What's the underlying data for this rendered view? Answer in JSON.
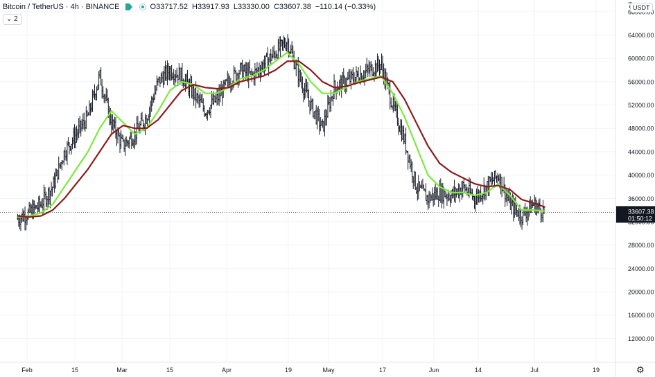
{
  "header": {
    "symbol": "Bitcoin / TetherUS · 4h · BINANCE",
    "open": "O33717.52",
    "high": "H33917.93",
    "low": "L33330.00",
    "close": "C33607.38",
    "change": "−110.14 (−0.33%)",
    "chip_label": "⌄ 2"
  },
  "corner": {
    "top_label": "7",
    "currency_button": "USDT"
  },
  "price_tag": {
    "value": "33607.38",
    "countdown": "01:50:12"
  },
  "icons": {
    "settings": "gear-icon",
    "flag": "flag-icon",
    "visibility": "eye-dot-icon"
  },
  "colors": {
    "bars": "#131722",
    "ma_fast": "#7cea3c",
    "ma_slow": "#8b1a1a",
    "tag_bg": "#131722",
    "grid": "#f0f3fa"
  },
  "chart_data": {
    "type": "line",
    "title": "Bitcoin / TetherUS · 4h · BINANCE",
    "ylim": [
      8000,
      70000
    ],
    "yticks": [
      "12000.00",
      "16000.00",
      "20000.00",
      "24000.00",
      "28000.00",
      "32000.00",
      "36000.00",
      "40000.00",
      "44000.00",
      "48000.00",
      "52000.00",
      "56000.00",
      "60000.00",
      "64000.00",
      "68000.00"
    ],
    "xticks": [
      "Feb",
      "15",
      "Mar",
      "15",
      "Apr",
      "19",
      "May",
      "17",
      "Jun",
      "14",
      "Jul",
      "19"
    ],
    "x": [
      1,
      5,
      9,
      13,
      17,
      21,
      25,
      29,
      33,
      37,
      41,
      45,
      49,
      53,
      57,
      61,
      65,
      69,
      73,
      77,
      81,
      85,
      89,
      93,
      97,
      101,
      105,
      109,
      113,
      117,
      121,
      125,
      129,
      133,
      137,
      141,
      145,
      149,
      153,
      157,
      161,
      165,
      169,
      173,
      177,
      181
    ],
    "x_range": [
      -5,
      205
    ],
    "series": [
      {
        "values": [
          32500,
          33500,
          35000,
          38000,
          44000,
          47000,
          50000,
          57000,
          49000,
          45000,
          47000,
          50000,
          56000,
          58000,
          57000,
          54000,
          51000,
          53000,
          56000,
          58000,
          57000,
          59000,
          61000,
          63000,
          57000,
          52000,
          48000,
          55000,
          56000,
          57000,
          58000,
          59000,
          52000,
          46000,
          38000,
          36000,
          37000,
          36500,
          38000,
          36000,
          38000,
          40000,
          35000,
          33000,
          35000,
          33600
        ]
      },
      {
        "values": [
          32800,
          33000,
          33500,
          35000,
          38000,
          41000,
          44000,
          48000,
          51000,
          49000,
          47000,
          48000,
          51000,
          54500,
          56000,
          55500,
          54000,
          54000,
          55000,
          56500,
          57000,
          58000,
          59500,
          61000,
          59000,
          56000,
          54000,
          54000,
          55000,
          56000,
          56500,
          57000,
          54000,
          50000,
          45000,
          40000,
          38000,
          37000,
          37000,
          36500,
          37000,
          38500,
          36500,
          34000,
          34000,
          33800
        ]
      },
      {
        "values": [
          33000,
          32800,
          33000,
          34000,
          36000,
          38500,
          41000,
          44000,
          47000,
          48500,
          48000,
          48000,
          49500,
          52000,
          54500,
          55500,
          55000,
          54800,
          55000,
          56000,
          56500,
          57000,
          58000,
          59500,
          59500,
          58000,
          56000,
          55000,
          55200,
          55800,
          56300,
          56800,
          56000,
          53000,
          49000,
          45000,
          42000,
          40500,
          39500,
          38500,
          38000,
          38200,
          37500,
          35800,
          35200,
          34500
        ]
      }
    ]
  }
}
